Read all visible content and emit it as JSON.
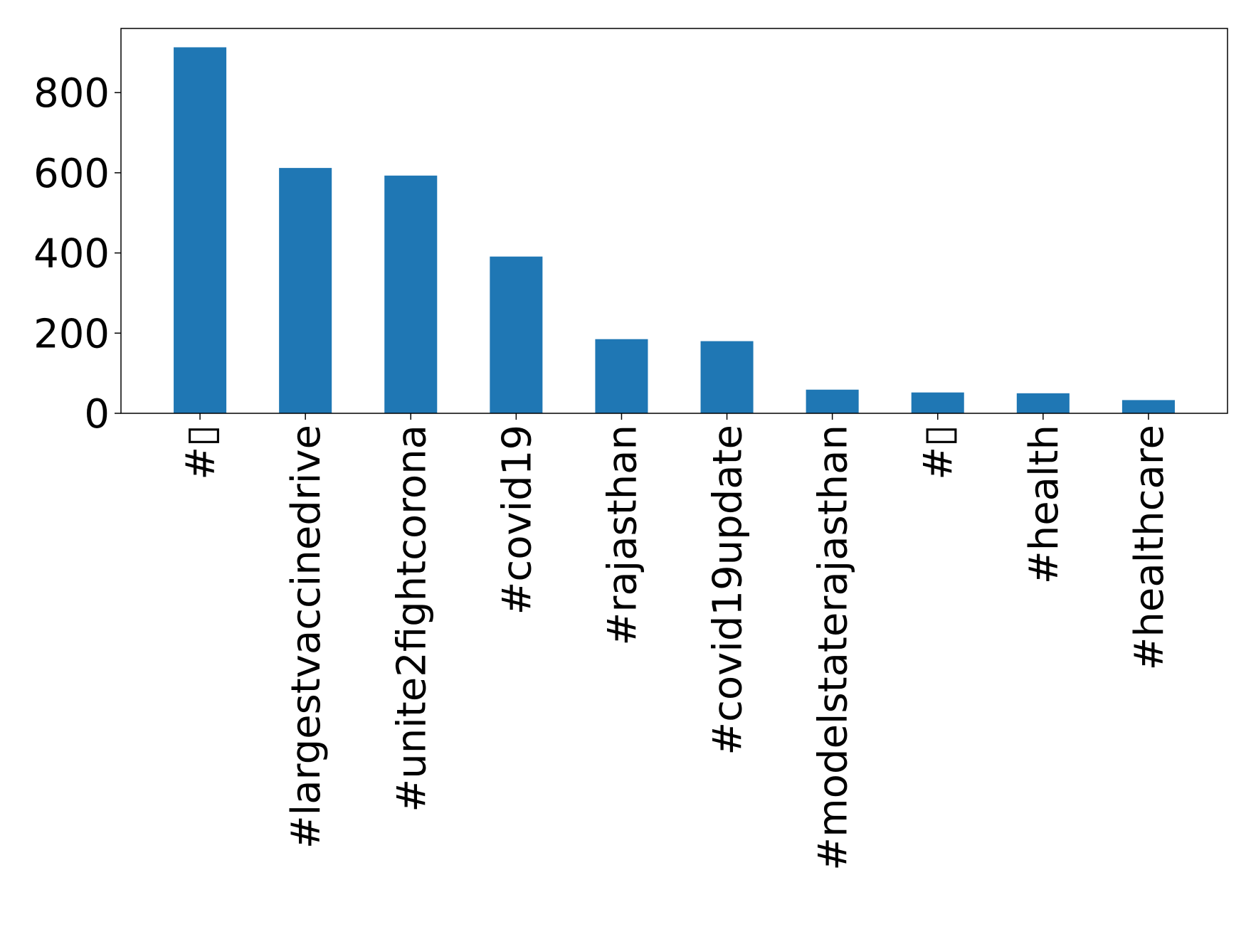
{
  "chart_data": {
    "type": "bar",
    "title": "",
    "xlabel": "",
    "ylabel": "",
    "categories": [
      "#▯",
      "#largestvaccinedrive",
      "#unite2fightcorona",
      "#covid19",
      "#rajasthan",
      "#covid19update",
      "#modelstaterajasthan",
      "#▯",
      "#health",
      "#healthcare"
    ],
    "values": [
      913,
      612,
      593,
      391,
      185,
      180,
      59,
      52,
      50,
      33
    ],
    "ylim": [
      0,
      960
    ],
    "yticks": [
      0,
      200,
      400,
      600,
      800
    ],
    "bar_color": "#1f77b4",
    "grid": false,
    "legend": "none"
  }
}
